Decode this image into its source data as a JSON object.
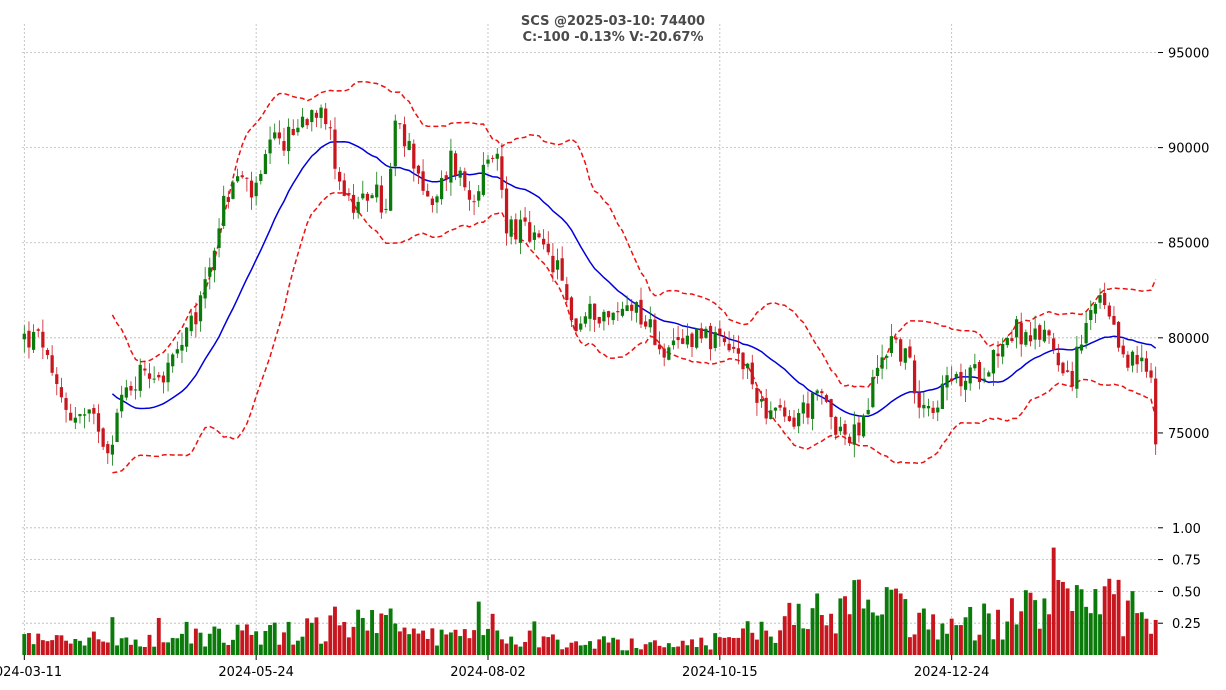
{
  "chart_data": {
    "type": "candlestick",
    "title": "SCS @2025-03-10: 74400",
    "subtitle": "C:-100 -0.13% V:-20.67%",
    "x_tick_labels": [
      "2024-03-11",
      "2024-05-24",
      "2024-08-02",
      "2024-10-15",
      "2024-12-24"
    ],
    "price_ticks": [
      75000,
      80000,
      85000,
      90000,
      95000
    ],
    "price_ylim": [
      72000,
      96500
    ],
    "volume_ticks": [
      0.25,
      0.5,
      0.75,
      1.0
    ],
    "volume_tick_labels": [
      "0.25",
      "0.50",
      "0.75",
      "1.00"
    ],
    "volume_ylim": [
      0,
      1.25
    ],
    "num_bars": 245,
    "bollinger_period": 20,
    "colors": {
      "up": "#0a7a0a",
      "down": "#c8161e",
      "mid_band": "#0000dd",
      "outer_band": "#ee1111",
      "grid": "#b8b8b8"
    },
    "price_keypoints": [
      [
        0,
        80000
      ],
      [
        4,
        79800
      ],
      [
        6,
        77500
      ],
      [
        10,
        76000
      ],
      [
        16,
        75500
      ],
      [
        18,
        74200
      ],
      [
        21,
        76800
      ],
      [
        26,
        78500
      ],
      [
        30,
        78000
      ],
      [
        34,
        79500
      ],
      [
        37,
        81000
      ],
      [
        40,
        84000
      ],
      [
        43,
        87000
      ],
      [
        46,
        88500
      ],
      [
        50,
        87500
      ],
      [
        53,
        90000
      ],
      [
        57,
        90500
      ],
      [
        60,
        91500
      ],
      [
        64,
        92500
      ],
      [
        66,
        90500
      ],
      [
        69,
        87500
      ],
      [
        72,
        86500
      ],
      [
        75,
        88000
      ],
      [
        78,
        86500
      ],
      [
        80,
        91000
      ],
      [
        84,
        89500
      ],
      [
        88,
        86500
      ],
      [
        92,
        89500
      ],
      [
        96,
        87500
      ],
      [
        99,
        88500
      ],
      [
        102,
        89500
      ],
      [
        104,
        86000
      ],
      [
        108,
        85500
      ],
      [
        112,
        84500
      ],
      [
        115,
        83500
      ],
      [
        119,
        80500
      ],
      [
        123,
        81500
      ],
      [
        127,
        81000
      ],
      [
        131,
        82000
      ],
      [
        135,
        80500
      ],
      [
        139,
        79000
      ],
      [
        143,
        80000
      ],
      [
        146,
        80500
      ],
      [
        150,
        79500
      ],
      [
        154,
        79000
      ],
      [
        157,
        77500
      ],
      [
        161,
        76000
      ],
      [
        165,
        75500
      ],
      [
        168,
        76200
      ],
      [
        172,
        76800
      ],
      [
        176,
        75200
      ],
      [
        178,
        74500
      ],
      [
        181,
        75500
      ],
      [
        184,
        78500
      ],
      [
        187,
        80000
      ],
      [
        190,
        79000
      ],
      [
        193,
        77000
      ],
      [
        196,
        76500
      ],
      [
        199,
        77500
      ],
      [
        203,
        77800
      ],
      [
        207,
        78500
      ],
      [
        211,
        79800
      ],
      [
        214,
        80500
      ],
      [
        217,
        79500
      ],
      [
        220,
        80500
      ],
      [
        223,
        79000
      ],
      [
        226,
        78000
      ],
      [
        229,
        80500
      ],
      [
        232,
        82000
      ],
      [
        235,
        80000
      ],
      [
        238,
        79000
      ],
      [
        241,
        78500
      ],
      [
        244,
        77500
      ],
      [
        245,
        74400
      ]
    ],
    "volume_keypoints": [
      [
        0,
        0.15
      ],
      [
        20,
        0.12
      ],
      [
        40,
        0.18
      ],
      [
        60,
        0.22
      ],
      [
        75,
        0.3
      ],
      [
        90,
        0.15
      ],
      [
        110,
        0.14
      ],
      [
        130,
        0.1
      ],
      [
        150,
        0.12
      ],
      [
        165,
        0.3
      ],
      [
        180,
        0.45
      ],
      [
        200,
        0.25
      ],
      [
        220,
        0.4
      ],
      [
        235,
        0.45
      ],
      [
        245,
        0.2
      ]
    ]
  }
}
